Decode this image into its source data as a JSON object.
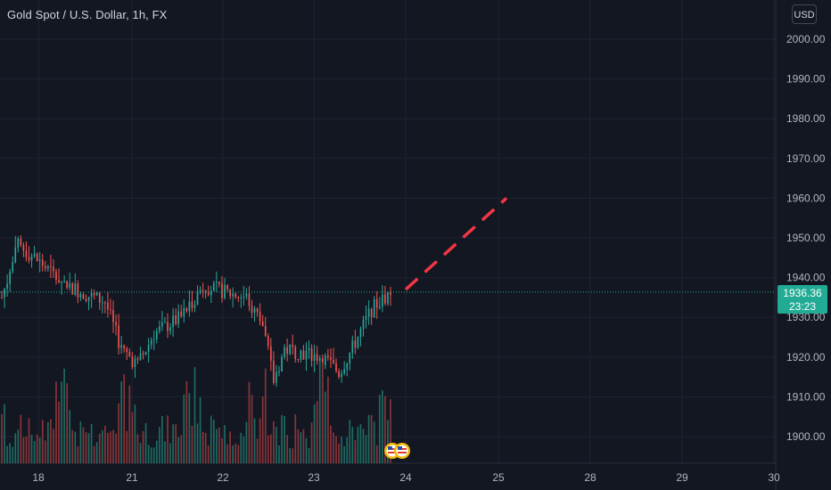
{
  "header": {
    "title": "Gold Spot / U.S. Dollar, 1h, FX",
    "currency": "USD"
  },
  "last_price": {
    "value": "1936.36",
    "countdown": "23:23"
  },
  "colors": {
    "background": "#131722",
    "grid": "#1f2330",
    "up": "#26a69a",
    "down": "#ef5350",
    "up_volume": "#1e6b62",
    "down_volume": "#8a3438",
    "projection": "#f23645",
    "price_line": "#22ab94",
    "axis_text": "#b2b5be"
  },
  "chart_data": {
    "type": "candlestick",
    "symbol": "XAUUSD",
    "interval": "1h",
    "y_axis": {
      "ticks": [
        "2000.00",
        "1990.00",
        "1980.00",
        "1970.00",
        "1960.00",
        "1950.00",
        "1940.00",
        "1930.00",
        "1920.00",
        "1910.00",
        "1900.00"
      ],
      "range": [
        1893,
        2006
      ]
    },
    "x_axis": {
      "ticks": [
        "18",
        "21",
        "22",
        "23",
        "24",
        "25",
        "28",
        "29",
        "30"
      ]
    },
    "price_summary": {
      "start": 1935,
      "high_near_start": 1950,
      "low_on_21": 1918,
      "range_22": [
        1930,
        1940
      ],
      "low_on_23": 1914,
      "last": 1936.36
    },
    "projection": {
      "style": "dashed",
      "from": {
        "x": "23 (end)",
        "y": 1937
      },
      "to": {
        "x": "25",
        "y": 1960
      }
    },
    "volume": {
      "shown": true,
      "scale": "relative"
    },
    "annotations": [
      "US flag event markers near 23"
    ]
  }
}
